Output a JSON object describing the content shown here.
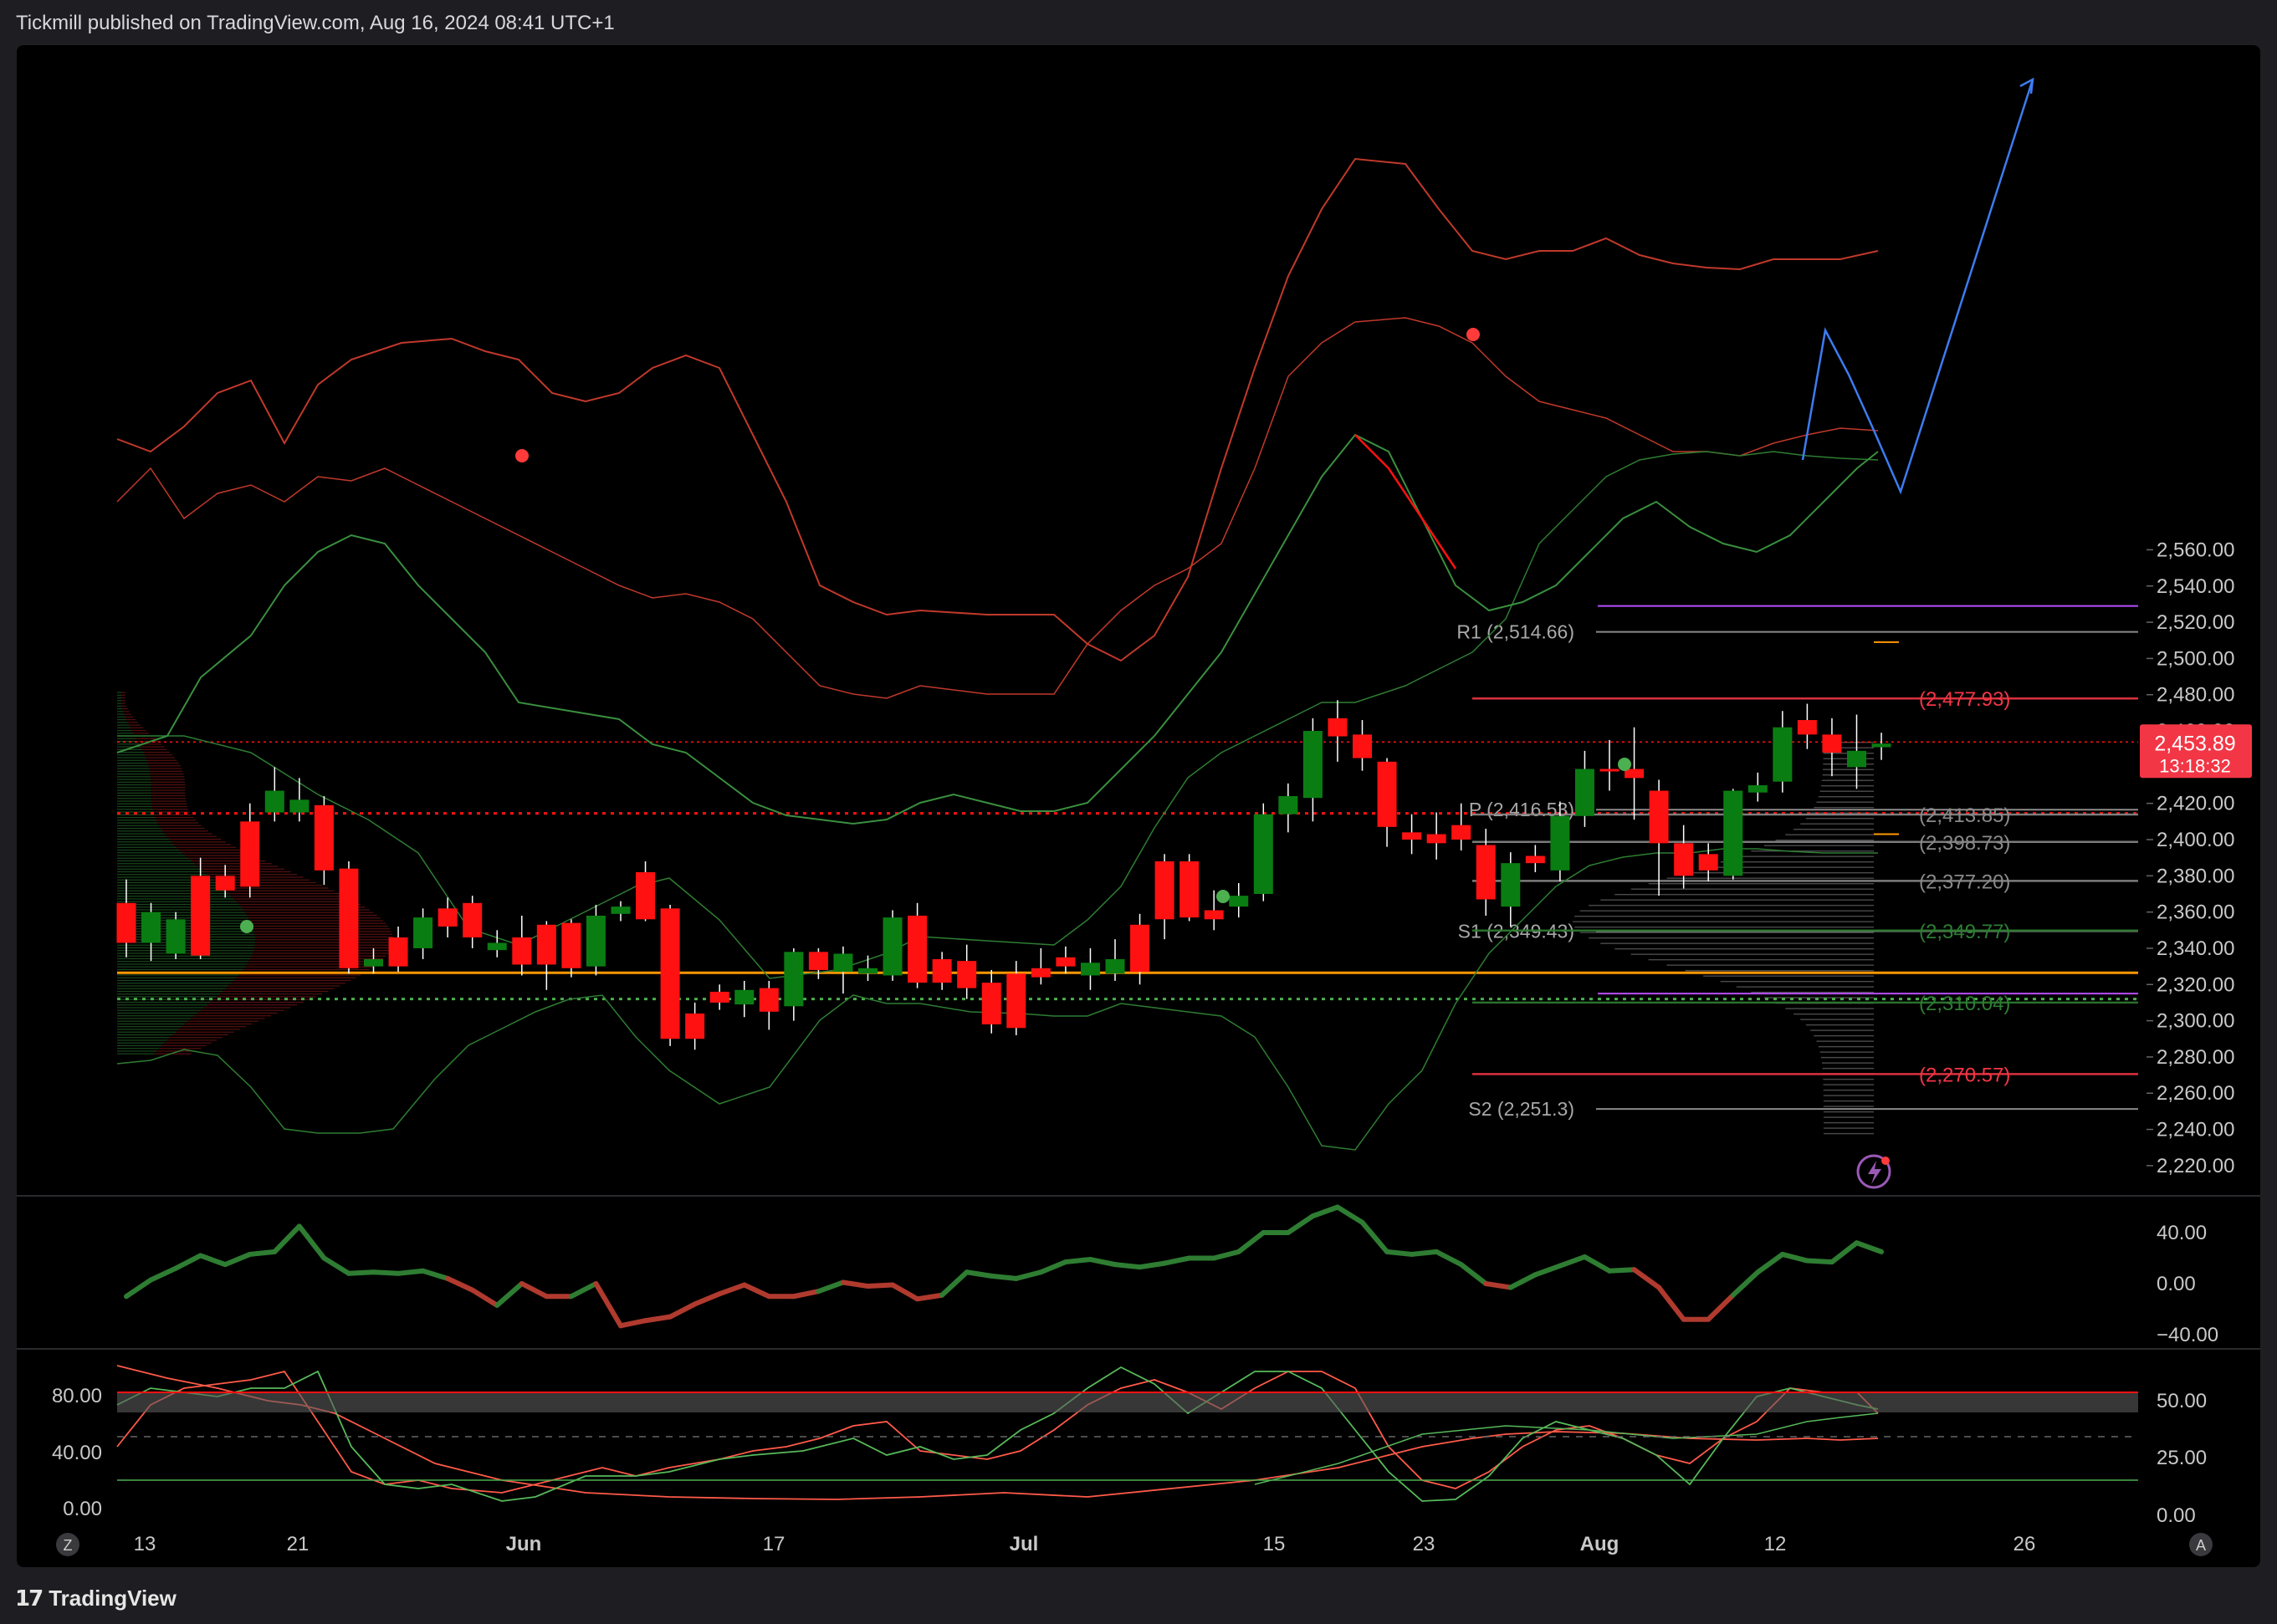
{
  "header": {
    "published_text": "Tickmill published on TradingView.com, Aug 16, 2024 08:41 UTC+1"
  },
  "footer": {
    "brand": "TradingView",
    "brand_icon": "tradingview-logo-icon"
  },
  "colors": {
    "bull": "#0a7d12",
    "bear": "#ff1111",
    "price_tag": "#f23645",
    "orange": "#ff9800",
    "purple": "#b84dff",
    "blue_projection": "#3d7cf0",
    "bb_red": "#c0392b",
    "bb_green": "#2e7d32"
  },
  "axis_buttons": {
    "left": "Z",
    "right": "A"
  },
  "chart_data": {
    "type": "candlestick",
    "symbol_note": "",
    "price_axis": {
      "ticks": [
        "2,560.00",
        "2,540.00",
        "2,520.00",
        "2,500.00",
        "2,480.00",
        "2,460.00",
        "2,440.00",
        "2,420.00",
        "2,400.00",
        "2,380.00",
        "2,360.00",
        "2,340.00",
        "2,320.00",
        "2,300.00",
        "2,280.00",
        "2,260.00",
        "2,240.00",
        "2,220.00"
      ],
      "ylim": [
        2212,
        2567
      ]
    },
    "time_axis": {
      "labels": [
        "13",
        "21",
        "Jun",
        "17",
        "Jul",
        "15",
        "23",
        "Aug",
        "12",
        "26"
      ]
    },
    "last_price": {
      "value": "2,453.89",
      "countdown": "13:18:32"
    },
    "candles": [
      [
        2365,
        2343,
        2378,
        2335
      ],
      [
        2343,
        2360,
        2365,
        2333
      ],
      [
        2337,
        2356,
        2360,
        2334
      ],
      [
        2380,
        2336,
        2390,
        2334
      ],
      [
        2380,
        2372,
        2386,
        2368
      ],
      [
        2410,
        2374,
        2420,
        2368
      ],
      [
        2415,
        2427,
        2440,
        2410
      ],
      [
        2415,
        2422,
        2434,
        2410
      ],
      [
        2419,
        2383,
        2424,
        2375
      ],
      [
        2384,
        2329,
        2388,
        2326
      ],
      [
        2330,
        2334,
        2340,
        2326
      ],
      [
        2346,
        2330,
        2352,
        2327
      ],
      [
        2340,
        2357,
        2362,
        2334
      ],
      [
        2362,
        2352,
        2368,
        2346
      ],
      [
        2365,
        2346,
        2369,
        2340
      ],
      [
        2339,
        2343,
        2350,
        2335
      ],
      [
        2346,
        2331,
        2358,
        2325
      ],
      [
        2353,
        2331,
        2355,
        2317
      ],
      [
        2354,
        2329,
        2356,
        2324
      ],
      [
        2330,
        2358,
        2364,
        2325
      ],
      [
        2359,
        2363,
        2366,
        2355
      ],
      [
        2382,
        2356,
        2388,
        2355
      ],
      [
        2362,
        2290,
        2364,
        2286
      ],
      [
        2304,
        2290,
        2310,
        2284
      ],
      [
        2316,
        2310,
        2320,
        2306
      ],
      [
        2309,
        2317,
        2322,
        2302
      ],
      [
        2318,
        2305,
        2322,
        2295
      ],
      [
        2308,
        2338,
        2340,
        2300
      ],
      [
        2338,
        2328,
        2340,
        2323
      ],
      [
        2327,
        2337,
        2341,
        2315
      ],
      [
        2326,
        2329,
        2336,
        2322
      ],
      [
        2325,
        2357,
        2361,
        2322
      ],
      [
        2358,
        2321,
        2365,
        2318
      ],
      [
        2334,
        2321,
        2338,
        2317
      ],
      [
        2333,
        2318,
        2342,
        2312
      ],
      [
        2321,
        2298,
        2328,
        2293
      ],
      [
        2326,
        2296,
        2333,
        2292
      ],
      [
        2329,
        2324,
        2340,
        2320
      ],
      [
        2335,
        2330,
        2341,
        2326
      ],
      [
        2325,
        2332,
        2340,
        2317
      ],
      [
        2326,
        2334,
        2345,
        2322
      ],
      [
        2353,
        2327,
        2359,
        2320
      ],
      [
        2388,
        2356,
        2392,
        2345
      ],
      [
        2388,
        2357,
        2392,
        2355
      ],
      [
        2361,
        2356,
        2372,
        2350
      ],
      [
        2363,
        2369,
        2376,
        2357
      ],
      [
        2370,
        2414,
        2420,
        2366
      ],
      [
        2414,
        2424,
        2431,
        2404
      ],
      [
        2423,
        2460,
        2467,
        2410
      ],
      [
        2467,
        2457,
        2477,
        2443
      ],
      [
        2458,
        2445,
        2466,
        2438
      ],
      [
        2443,
        2407,
        2445,
        2396
      ],
      [
        2404,
        2400,
        2414,
        2392
      ],
      [
        2403,
        2398,
        2415,
        2389
      ],
      [
        2408,
        2400,
        2420,
        2394
      ],
      [
        2397,
        2367,
        2406,
        2358
      ],
      [
        2363,
        2387,
        2393,
        2352
      ],
      [
        2391,
        2387,
        2397,
        2382
      ],
      [
        2383,
        2413,
        2421,
        2377
      ],
      [
        2413,
        2439,
        2449,
        2407
      ],
      [
        2439,
        2438,
        2455,
        2427
      ],
      [
        2439,
        2434,
        2462,
        2411
      ],
      [
        2427,
        2398,
        2433,
        2369
      ],
      [
        2398,
        2380,
        2408,
        2373
      ],
      [
        2392,
        2383,
        2398,
        2377
      ],
      [
        2380,
        2427,
        2428,
        2378
      ],
      [
        2426,
        2430,
        2437,
        2421
      ],
      [
        2432,
        2462,
        2471,
        2426
      ],
      [
        2466,
        2458,
        2475,
        2450
      ],
      [
        2458,
        2448,
        2467,
        2435
      ],
      [
        2440,
        2449,
        2469,
        2428
      ],
      [
        2451,
        2453,
        2459,
        2444
      ]
    ],
    "levels": [
      {
        "label": "R1 (2,514.66)",
        "value": 2514.66
      },
      {
        "label": "P (2,416.53)",
        "value": 2416.53
      },
      {
        "label": "S1 (2,349.43)",
        "value": 2349.43
      },
      {
        "label": "S2 (2,251.3)",
        "value": 2251.3
      }
    ],
    "price_labels": [
      {
        "label": "(2,477.93)",
        "value": 2477.93,
        "color": "#f23645"
      },
      {
        "label": "(2,413.85)",
        "value": 2413.85,
        "color": "#8a8a8a"
      },
      {
        "label": "(2,398.73)",
        "value": 2398.73,
        "color": "#8a8a8a"
      },
      {
        "label": "(2,377.20)",
        "value": 2377.2,
        "color": "#8a8a8a"
      },
      {
        "label": "(2,349.77)",
        "value": 2349.77,
        "color": "#2e7d32"
      },
      {
        "label": "(2,310.04)",
        "value": 2310.04,
        "color": "#2e7d32"
      },
      {
        "label": "(2,270.57)",
        "value": 2270.57,
        "color": "#f23645"
      }
    ],
    "horizontal_lines": {
      "purple_top": 2529,
      "purple_bottom": 2315,
      "orange_poc": 2326.5,
      "red_dotted": 2414.5,
      "green_dotted": 2312,
      "last_price": 2453.89
    },
    "oscillator": {
      "ticks": [
        "40.00",
        "0.00",
        "−40.00"
      ],
      "ylim": [
        -45,
        62
      ],
      "values": [
        -10,
        3,
        12,
        22,
        15,
        23,
        25,
        45,
        20,
        8,
        9,
        8,
        10,
        4,
        -5,
        -17,
        0,
        -10,
        -10,
        0,
        -33,
        -29,
        -26,
        -16,
        -8,
        -1,
        -10,
        -10,
        -6,
        1,
        -2,
        -1,
        -12,
        -9,
        9,
        6,
        4,
        9,
        17,
        19,
        15,
        13,
        16,
        20,
        20,
        25,
        40,
        40,
        53,
        60,
        48,
        25,
        23,
        25,
        15,
        0,
        -3,
        7,
        14,
        21,
        10,
        11,
        -3,
        -28,
        -28,
        -9,
        9,
        23,
        18,
        17,
        32,
        25
      ]
    },
    "stochastic": {
      "ticks_left": [
        "80.00",
        "40.00",
        "0.00"
      ],
      "ticks_right": [
        "50.00",
        "25.00",
        "0.00"
      ]
    }
  }
}
